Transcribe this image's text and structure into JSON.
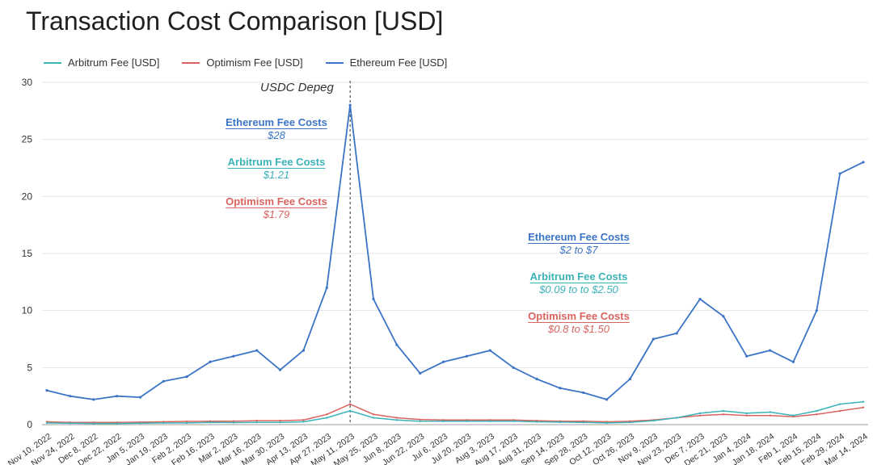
{
  "chart_data": {
    "type": "line",
    "title": "Transaction Cost Comparison [USD]",
    "xlabel": "",
    "ylabel": "",
    "ylim": [
      0,
      30
    ],
    "yticks": [
      "0",
      "5",
      "10",
      "15",
      "20",
      "25",
      "30"
    ],
    "grid": true,
    "legend_position": "top-left",
    "x_tick_labels": [
      "Nov 10, 2022",
      "Nov 24, 2022",
      "Dec 8, 2022",
      "Dec 22, 2022",
      "Jan 5, 2023",
      "Jan 19, 2023",
      "Feb 2, 2023",
      "Feb 16, 2023",
      "Mar 2, 2023",
      "Mar 16, 2023",
      "Mar 30, 2023",
      "Apr 13, 2023",
      "Apr 27, 2023",
      "May 11, 2023",
      "May 25, 2023",
      "Jun 8, 2023",
      "Jun 22, 2023",
      "Jul 6, 2023",
      "Jul 20, 2023",
      "Aug 3, 2023",
      "Aug 17, 2023",
      "Aug 31, 2023",
      "Sep 14, 2023",
      "Sep 28, 2023",
      "Oct 12, 2023",
      "Oct 26, 2023",
      "Nov 9, 2023",
      "Nov 23, 2023",
      "Dec 7, 2023",
      "Dec 21, 2023",
      "Jan 4, 2024",
      "Jan 18, 2024",
      "Feb 1, 2024",
      "Feb 15, 2024",
      "Feb 29, 2024",
      "Mar 14, 2024"
    ],
    "series": [
      {
        "name": "Arbitrum Fee [USD]",
        "color": "#3bb3b8",
        "values": [
          0.15,
          0.12,
          0.1,
          0.1,
          0.12,
          0.15,
          0.15,
          0.2,
          0.18,
          0.2,
          0.2,
          0.25,
          0.6,
          1.21,
          0.6,
          0.4,
          0.3,
          0.3,
          0.3,
          0.3,
          0.3,
          0.25,
          0.22,
          0.2,
          0.15,
          0.2,
          0.35,
          0.6,
          1.0,
          1.2,
          1.0,
          1.1,
          0.8,
          1.2,
          1.8,
          2.0
        ]
      },
      {
        "name": "Optimism Fee [USD]",
        "color": "#d9645f",
        "values": [
          0.25,
          0.2,
          0.2,
          0.2,
          0.22,
          0.25,
          0.28,
          0.3,
          0.3,
          0.35,
          0.35,
          0.4,
          0.9,
          1.79,
          0.9,
          0.6,
          0.45,
          0.4,
          0.4,
          0.4,
          0.4,
          0.35,
          0.3,
          0.3,
          0.25,
          0.3,
          0.4,
          0.6,
          0.8,
          0.9,
          0.8,
          0.8,
          0.7,
          0.9,
          1.2,
          1.5
        ]
      },
      {
        "name": "Ethereum Fee [USD]",
        "color": "#3b74c6",
        "values": [
          3.0,
          2.5,
          2.2,
          2.5,
          2.4,
          3.8,
          4.2,
          5.5,
          6.0,
          6.5,
          4.8,
          6.5,
          12.0,
          28.0,
          11.0,
          7.0,
          4.5,
          5.5,
          6.0,
          6.5,
          5.0,
          4.0,
          3.2,
          2.8,
          2.2,
          4.0,
          7.5,
          8.0,
          11.0,
          9.5,
          6.0,
          6.5,
          5.5,
          10.0,
          22.0,
          23.0
        ]
      }
    ],
    "annotations": {
      "event_label": "USDC Depeg",
      "peak": [
        {
          "title": "Ethereum Fee Costs",
          "value": "$28",
          "color": "#3b74c6"
        },
        {
          "title": "Arbitrum Fee Costs",
          "value": "$1.21",
          "color": "#3bb3b8"
        },
        {
          "title": "Optimism Fee Costs",
          "value": "$1.79",
          "color": "#d9645f"
        }
      ],
      "current": [
        {
          "title": "Ethereum Fee Costs",
          "value": "$2 to $7",
          "color": "#3b74c6"
        },
        {
          "title": "Arbitrum Fee Costs",
          "value": "$0.09 to to $2.50",
          "color": "#3bb3b8"
        },
        {
          "title": "Optimism Fee Costs",
          "value": "$0.8 to $1.50",
          "color": "#d9645f"
        }
      ]
    }
  }
}
